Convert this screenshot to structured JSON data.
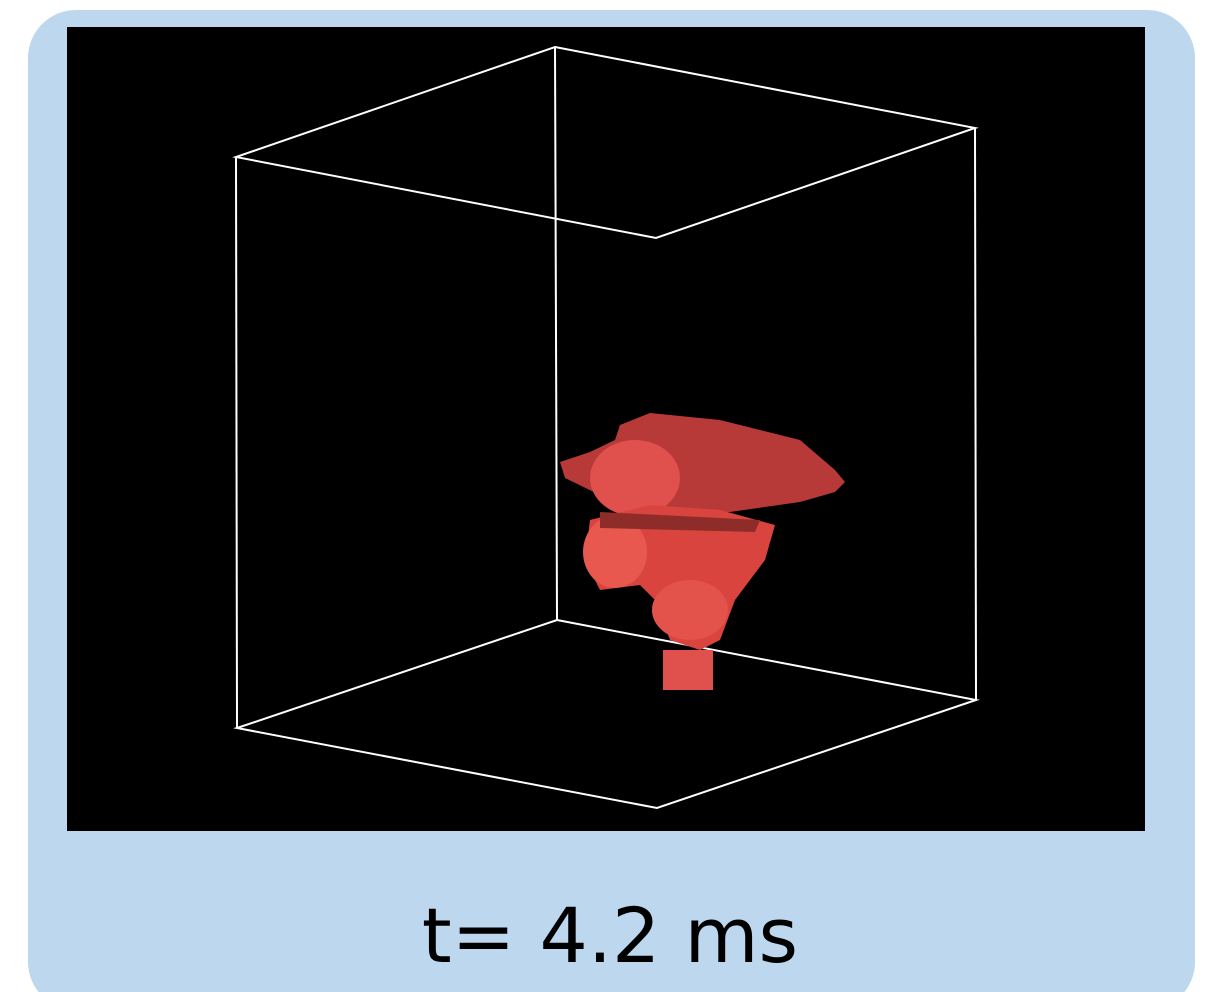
{
  "caption": "t= 4.2 ms"
}
